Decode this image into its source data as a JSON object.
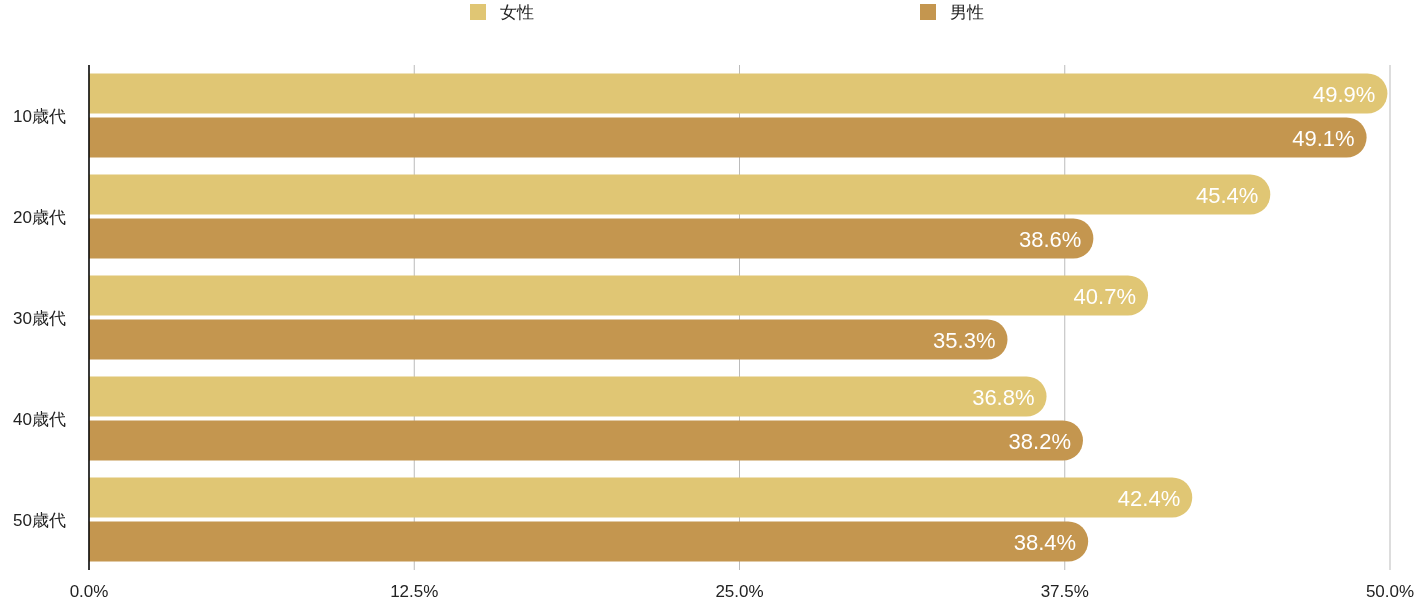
{
  "chart_data": {
    "type": "bar",
    "orientation": "horizontal",
    "categories": [
      "10歳代",
      "20歳代",
      "30歳代",
      "40歳代",
      "50歳代"
    ],
    "series": [
      {
        "name": "女性",
        "color": "#e0c674",
        "values": [
          49.9,
          45.4,
          40.7,
          36.8,
          42.4
        ],
        "value_labels": [
          "49.9%",
          "45.4%",
          "40.7%",
          "36.8%",
          "42.4%"
        ]
      },
      {
        "name": "男性",
        "color": "#c4964f",
        "values": [
          49.1,
          38.6,
          35.3,
          38.2,
          38.4
        ],
        "value_labels": [
          "49.1%",
          "38.6%",
          "35.3%",
          "38.2%",
          "38.4%"
        ]
      }
    ],
    "xlim": [
      0,
      50
    ],
    "xticks": [
      {
        "value": 0,
        "label": "0.0%"
      },
      {
        "value": 12.5,
        "label": "12.5%"
      },
      {
        "value": 25,
        "label": "25.0%"
      },
      {
        "value": 37.5,
        "label": "37.5%"
      },
      {
        "value": 50,
        "label": "50.0%"
      }
    ],
    "grid": "x",
    "legend": "top"
  }
}
